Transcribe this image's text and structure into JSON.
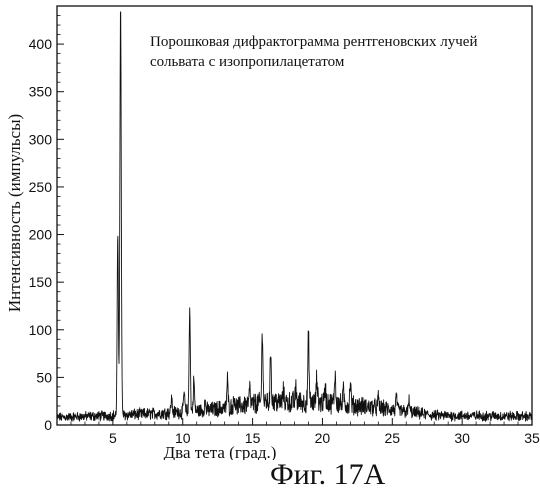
{
  "chart_data": {
    "type": "line",
    "title": "",
    "annotation_lines": [
      "Порошковая дифрактограмма рентгеновских лучей",
      "сольвата с изопропилацетатом"
    ],
    "xlabel": "Два тета (град.)",
    "ylabel": "Интенсивность (импульсы)",
    "xlim": [
      1,
      35
    ],
    "ylim": [
      0,
      440
    ],
    "xticks": [
      5,
      10,
      15,
      20,
      25,
      30,
      35
    ],
    "yticks": [
      0,
      50,
      100,
      150,
      200,
      250,
      300,
      350,
      400
    ],
    "grid": false,
    "peaks": [
      {
        "x": 5.35,
        "y": 200
      },
      {
        "x": 5.55,
        "y": 440
      },
      {
        "x": 9.2,
        "y": 28
      },
      {
        "x": 10.1,
        "y": 35
      },
      {
        "x": 10.5,
        "y": 125
      },
      {
        "x": 10.8,
        "y": 48
      },
      {
        "x": 11.6,
        "y": 25
      },
      {
        "x": 13.2,
        "y": 48
      },
      {
        "x": 13.7,
        "y": 30
      },
      {
        "x": 14.8,
        "y": 38
      },
      {
        "x": 15.7,
        "y": 100
      },
      {
        "x": 16.3,
        "y": 78
      },
      {
        "x": 17.2,
        "y": 35
      },
      {
        "x": 18.1,
        "y": 38
      },
      {
        "x": 19.0,
        "y": 95
      },
      {
        "x": 19.6,
        "y": 50
      },
      {
        "x": 20.2,
        "y": 40
      },
      {
        "x": 20.9,
        "y": 55
      },
      {
        "x": 21.5,
        "y": 35
      },
      {
        "x": 22.0,
        "y": 45
      },
      {
        "x": 24.0,
        "y": 28
      },
      {
        "x": 25.3,
        "y": 30
      },
      {
        "x": 26.2,
        "y": 26
      }
    ],
    "baseline": [
      {
        "x": 1,
        "y": 8
      },
      {
        "x": 5,
        "y": 10
      },
      {
        "x": 8,
        "y": 12
      },
      {
        "x": 12,
        "y": 16
      },
      {
        "x": 16,
        "y": 24
      },
      {
        "x": 20,
        "y": 24
      },
      {
        "x": 24,
        "y": 18
      },
      {
        "x": 28,
        "y": 10
      },
      {
        "x": 35,
        "y": 9
      }
    ]
  },
  "caption": "Фиг. 17А"
}
